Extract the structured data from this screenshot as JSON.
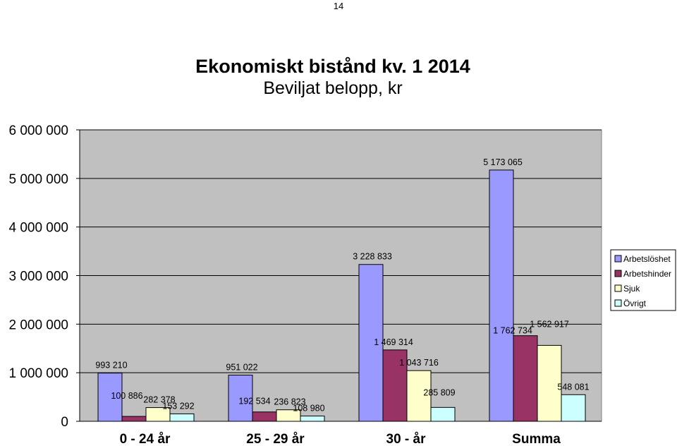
{
  "page": {
    "number": "14"
  },
  "chart_data": {
    "type": "bar",
    "title": "Ekonomiskt bistånd kv. 1 2014",
    "subtitle": "Beviljat belopp, kr",
    "categories": [
      "0 - 24 år",
      "25 - 29 år",
      "30 - år",
      "Summa"
    ],
    "series": [
      {
        "name": "Arbetslöshet",
        "color": "#9999ff",
        "values": [
          993210,
          951022,
          3228833,
          5173065
        ],
        "labels": [
          "993 210",
          "951 022",
          "3 228 833",
          "5 173 065"
        ]
      },
      {
        "name": "Arbetshinder",
        "color": "#993366",
        "values": [
          100886,
          192534,
          1469314,
          1762734
        ],
        "labels": [
          "100 886",
          "192 534",
          "1 469 314",
          "1 762 734"
        ]
      },
      {
        "name": "Sjuk",
        "color": "#ffffcc",
        "values": [
          282378,
          236823,
          1043716,
          1562917
        ],
        "labels": [
          "282 378",
          "236 823",
          "1 043 716",
          "1 562 917"
        ]
      },
      {
        "name": "Övrigt",
        "color": "#ccffff",
        "values": [
          153292,
          108980,
          285809,
          548081
        ],
        "labels": [
          "153 292",
          "108 980",
          "285 809",
          "548 081"
        ]
      }
    ],
    "ylim": [
      0,
      6000000
    ],
    "yticks": [
      0,
      1000000,
      2000000,
      3000000,
      4000000,
      5000000,
      6000000
    ],
    "ytick_labels": [
      "0",
      "1 000 000",
      "2 000 000",
      "3 000 000",
      "4 000 000",
      "5 000 000",
      "6 000 000"
    ],
    "plot_background": "#c0c0c0",
    "grid": true,
    "legend_position": "right"
  }
}
